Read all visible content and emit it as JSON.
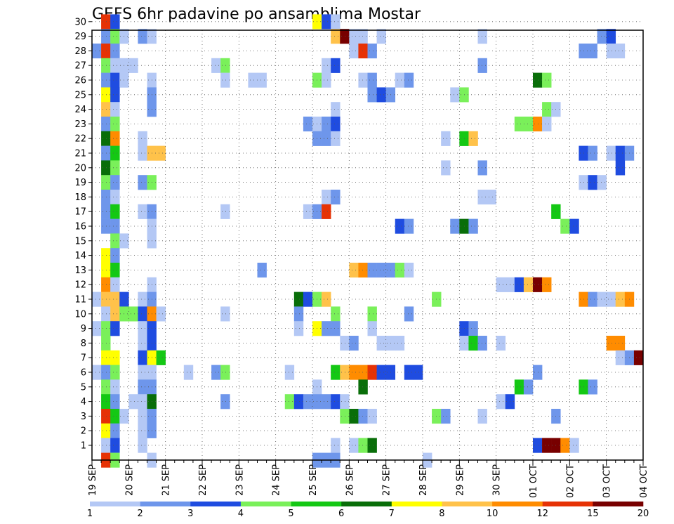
{
  "chart_data": {
    "type": "heatmap",
    "title": "GEFS 6hr padavine po ansamblima Mostar",
    "xlabel": "",
    "ylabel": "",
    "x_tick_labels": [
      "19 SEP",
      "20 SEP",
      "21 SEP",
      "22 SEP",
      "23 SEP",
      "24 SEP",
      "25 SEP",
      "26 SEP",
      "27 SEP",
      "28 SEP",
      "29 SEP",
      "30 SEP",
      "01 OCT",
      "02 OCT",
      "03 OCT",
      "04 OCT"
    ],
    "x_unit": "6-hour step from 19 SEP",
    "xlim": [
      0,
      60
    ],
    "y_tick_labels": [
      "1",
      "2",
      "3",
      "4",
      "5",
      "6",
      "7",
      "8",
      "9",
      "10",
      "11",
      "12",
      "13",
      "14",
      "15",
      "16",
      "17",
      "18",
      "19",
      "20",
      "21",
      "22",
      "23",
      "24",
      "25",
      "26",
      "27",
      "28",
      "29",
      "30"
    ],
    "ylim": [
      0.5,
      30.5
    ],
    "grid": true,
    "colorbar": {
      "labels": [
        "1",
        "2",
        "3",
        "4",
        "5",
        "6",
        "7",
        "8",
        "10",
        "12",
        "15",
        "20"
      ],
      "colors": [
        "#b4c8f5",
        "#6e96eb",
        "#1f4ce0",
        "#7af05a",
        "#14c814",
        "#096e09",
        "#ffff00",
        "#ffc24a",
        "#ff8c00",
        "#e63205",
        "#780000"
      ]
    },
    "cells_note": "each cell: [member, x_index (0 = 19 SEP 00z, 6h steps), color_index]",
    "cells": [
      [
        30,
        1,
        9
      ],
      [
        30,
        2,
        2
      ],
      [
        30,
        24,
        6
      ],
      [
        30,
        25,
        2
      ],
      [
        30,
        26,
        0
      ],
      [
        29,
        1,
        1
      ],
      [
        29,
        2,
        3
      ],
      [
        29,
        3,
        0
      ],
      [
        29,
        5,
        1
      ],
      [
        29,
        6,
        0
      ],
      [
        29,
        26,
        7
      ],
      [
        29,
        27,
        10
      ],
      [
        29,
        28,
        0
      ],
      [
        29,
        29,
        0
      ],
      [
        29,
        31,
        0
      ],
      [
        29,
        42,
        0
      ],
      [
        29,
        55,
        1
      ],
      [
        29,
        56,
        2
      ],
      [
        28,
        0,
        1
      ],
      [
        28,
        1,
        9
      ],
      [
        28,
        2,
        1
      ],
      [
        28,
        28,
        0
      ],
      [
        28,
        29,
        9
      ],
      [
        28,
        30,
        1
      ],
      [
        28,
        53,
        1
      ],
      [
        28,
        54,
        1
      ],
      [
        28,
        56,
        0
      ],
      [
        28,
        57,
        0
      ],
      [
        27,
        1,
        3
      ],
      [
        27,
        2,
        0
      ],
      [
        27,
        3,
        0
      ],
      [
        27,
        4,
        0
      ],
      [
        27,
        13,
        0
      ],
      [
        27,
        14,
        3
      ],
      [
        27,
        25,
        0
      ],
      [
        27,
        26,
        2
      ],
      [
        27,
        42,
        1
      ],
      [
        26,
        1,
        1
      ],
      [
        26,
        2,
        2
      ],
      [
        26,
        3,
        0
      ],
      [
        26,
        6,
        0
      ],
      [
        26,
        14,
        0
      ],
      [
        26,
        17,
        0
      ],
      [
        26,
        18,
        0
      ],
      [
        26,
        24,
        3
      ],
      [
        26,
        25,
        0
      ],
      [
        26,
        29,
        0
      ],
      [
        26,
        30,
        1
      ],
      [
        26,
        33,
        0
      ],
      [
        26,
        34,
        1
      ],
      [
        26,
        48,
        5
      ],
      [
        26,
        49,
        3
      ],
      [
        25,
        1,
        6
      ],
      [
        25,
        2,
        2
      ],
      [
        25,
        6,
        1
      ],
      [
        25,
        30,
        1
      ],
      [
        25,
        31,
        2
      ],
      [
        25,
        32,
        1
      ],
      [
        25,
        39,
        0
      ],
      [
        25,
        40,
        3
      ],
      [
        24,
        1,
        7
      ],
      [
        24,
        2,
        0
      ],
      [
        24,
        6,
        1
      ],
      [
        24,
        26,
        0
      ],
      [
        24,
        49,
        3
      ],
      [
        24,
        50,
        0
      ],
      [
        23,
        1,
        1
      ],
      [
        23,
        2,
        3
      ],
      [
        23,
        23,
        1
      ],
      [
        23,
        24,
        0
      ],
      [
        23,
        25,
        1
      ],
      [
        23,
        26,
        2
      ],
      [
        23,
        46,
        3
      ],
      [
        23,
        47,
        3
      ],
      [
        23,
        48,
        8
      ],
      [
        23,
        49,
        0
      ],
      [
        22,
        1,
        5
      ],
      [
        22,
        2,
        8
      ],
      [
        22,
        5,
        0
      ],
      [
        22,
        24,
        1
      ],
      [
        22,
        25,
        1
      ],
      [
        22,
        26,
        0
      ],
      [
        22,
        38,
        0
      ],
      [
        22,
        40,
        4
      ],
      [
        22,
        41,
        7
      ],
      [
        21,
        1,
        1
      ],
      [
        21,
        2,
        4
      ],
      [
        21,
        5,
        0
      ],
      [
        21,
        6,
        7
      ],
      [
        21,
        7,
        7
      ],
      [
        21,
        53,
        2
      ],
      [
        21,
        54,
        1
      ],
      [
        21,
        56,
        0
      ],
      [
        21,
        57,
        2
      ],
      [
        21,
        58,
        1
      ],
      [
        20,
        1,
        5
      ],
      [
        20,
        2,
        3
      ],
      [
        20,
        38,
        0
      ],
      [
        20,
        42,
        1
      ],
      [
        20,
        57,
        2
      ],
      [
        19,
        1,
        3
      ],
      [
        19,
        2,
        1
      ],
      [
        19,
        5,
        1
      ],
      [
        19,
        6,
        3
      ],
      [
        19,
        53,
        0
      ],
      [
        19,
        54,
        2
      ],
      [
        19,
        55,
        0
      ],
      [
        18,
        1,
        1
      ],
      [
        18,
        2,
        0
      ],
      [
        18,
        25,
        0
      ],
      [
        18,
        26,
        1
      ],
      [
        18,
        42,
        0
      ],
      [
        18,
        43,
        0
      ],
      [
        17,
        1,
        1
      ],
      [
        17,
        2,
        4
      ],
      [
        17,
        5,
        0
      ],
      [
        17,
        6,
        1
      ],
      [
        17,
        14,
        0
      ],
      [
        17,
        23,
        0
      ],
      [
        17,
        24,
        1
      ],
      [
        17,
        25,
        9
      ],
      [
        17,
        50,
        4
      ],
      [
        16,
        1,
        1
      ],
      [
        16,
        2,
        1
      ],
      [
        16,
        6,
        0
      ],
      [
        16,
        33,
        2
      ],
      [
        16,
        34,
        1
      ],
      [
        16,
        39,
        1
      ],
      [
        16,
        40,
        5
      ],
      [
        16,
        41,
        1
      ],
      [
        16,
        51,
        3
      ],
      [
        16,
        52,
        2
      ],
      [
        15,
        2,
        3
      ],
      [
        15,
        3,
        0
      ],
      [
        15,
        6,
        0
      ],
      [
        14,
        1,
        6
      ],
      [
        14,
        2,
        1
      ],
      [
        13,
        1,
        6
      ],
      [
        13,
        2,
        4
      ],
      [
        13,
        18,
        1
      ],
      [
        13,
        28,
        7
      ],
      [
        13,
        29,
        8
      ],
      [
        13,
        30,
        1
      ],
      [
        13,
        31,
        1
      ],
      [
        13,
        32,
        1
      ],
      [
        13,
        33,
        3
      ],
      [
        13,
        34,
        0
      ],
      [
        12,
        1,
        8
      ],
      [
        12,
        2,
        0
      ],
      [
        12,
        6,
        0
      ],
      [
        12,
        44,
        0
      ],
      [
        12,
        45,
        0
      ],
      [
        12,
        46,
        2
      ],
      [
        12,
        47,
        7
      ],
      [
        12,
        48,
        10
      ],
      [
        12,
        49,
        8
      ],
      [
        11,
        0,
        0
      ],
      [
        11,
        1,
        7
      ],
      [
        11,
        2,
        7
      ],
      [
        11,
        3,
        2
      ],
      [
        11,
        5,
        0
      ],
      [
        11,
        6,
        1
      ],
      [
        11,
        22,
        5
      ],
      [
        11,
        23,
        2
      ],
      [
        11,
        24,
        3
      ],
      [
        11,
        25,
        7
      ],
      [
        11,
        37,
        3
      ],
      [
        11,
        53,
        8
      ],
      [
        11,
        54,
        1
      ],
      [
        11,
        55,
        0
      ],
      [
        11,
        56,
        0
      ],
      [
        11,
        57,
        7
      ],
      [
        11,
        58,
        8
      ],
      [
        10,
        1,
        0
      ],
      [
        10,
        2,
        7
      ],
      [
        10,
        3,
        3
      ],
      [
        10,
        4,
        3
      ],
      [
        10,
        5,
        2
      ],
      [
        10,
        6,
        8
      ],
      [
        10,
        7,
        0
      ],
      [
        10,
        14,
        0
      ],
      [
        10,
        22,
        1
      ],
      [
        10,
        26,
        3
      ],
      [
        10,
        30,
        3
      ],
      [
        10,
        34,
        1
      ],
      [
        9,
        0,
        0
      ],
      [
        9,
        1,
        3
      ],
      [
        9,
        2,
        2
      ],
      [
        9,
        5,
        0
      ],
      [
        9,
        6,
        2
      ],
      [
        9,
        22,
        0
      ],
      [
        9,
        24,
        6
      ],
      [
        9,
        25,
        1
      ],
      [
        9,
        26,
        1
      ],
      [
        9,
        30,
        0
      ],
      [
        9,
        40,
        2
      ],
      [
        9,
        41,
        1
      ],
      [
        8,
        1,
        3
      ],
      [
        8,
        5,
        0
      ],
      [
        8,
        6,
        2
      ],
      [
        8,
        27,
        0
      ],
      [
        8,
        28,
        1
      ],
      [
        8,
        31,
        0
      ],
      [
        8,
        32,
        0
      ],
      [
        8,
        33,
        0
      ],
      [
        8,
        40,
        0
      ],
      [
        8,
        41,
        4
      ],
      [
        8,
        42,
        1
      ],
      [
        8,
        44,
        0
      ],
      [
        8,
        56,
        8
      ],
      [
        8,
        57,
        8
      ],
      [
        7,
        1,
        6
      ],
      [
        7,
        2,
        6
      ],
      [
        7,
        5,
        2
      ],
      [
        7,
        6,
        6
      ],
      [
        7,
        7,
        4
      ],
      [
        7,
        57,
        0
      ],
      [
        7,
        58,
        1
      ],
      [
        7,
        59,
        10
      ],
      [
        6,
        0,
        0
      ],
      [
        6,
        1,
        1
      ],
      [
        6,
        2,
        3
      ],
      [
        6,
        5,
        0
      ],
      [
        6,
        6,
        0
      ],
      [
        6,
        10,
        0
      ],
      [
        6,
        13,
        1
      ],
      [
        6,
        14,
        3
      ],
      [
        6,
        21,
        0
      ],
      [
        6,
        26,
        4
      ],
      [
        6,
        27,
        7
      ],
      [
        6,
        28,
        8
      ],
      [
        6,
        29,
        8
      ],
      [
        6,
        30,
        9
      ],
      [
        6,
        31,
        2
      ],
      [
        6,
        32,
        2
      ],
      [
        6,
        34,
        2
      ],
      [
        6,
        35,
        2
      ],
      [
        6,
        48,
        1
      ],
      [
        5,
        1,
        3
      ],
      [
        5,
        2,
        0
      ],
      [
        5,
        5,
        1
      ],
      [
        5,
        6,
        1
      ],
      [
        5,
        24,
        0
      ],
      [
        5,
        29,
        5
      ],
      [
        5,
        46,
        4
      ],
      [
        5,
        47,
        1
      ],
      [
        5,
        53,
        4
      ],
      [
        5,
        54,
        1
      ],
      [
        4,
        1,
        4
      ],
      [
        4,
        2,
        1
      ],
      [
        4,
        4,
        0
      ],
      [
        4,
        5,
        0
      ],
      [
        4,
        6,
        5
      ],
      [
        4,
        14,
        1
      ],
      [
        4,
        21,
        3
      ],
      [
        4,
        22,
        2
      ],
      [
        4,
        23,
        1
      ],
      [
        4,
        24,
        1
      ],
      [
        4,
        25,
        1
      ],
      [
        4,
        26,
        2
      ],
      [
        4,
        27,
        0
      ],
      [
        4,
        44,
        0
      ],
      [
        4,
        45,
        2
      ],
      [
        3,
        1,
        9
      ],
      [
        3,
        2,
        4
      ],
      [
        3,
        3,
        0
      ],
      [
        3,
        5,
        0
      ],
      [
        3,
        6,
        1
      ],
      [
        3,
        27,
        3
      ],
      [
        3,
        28,
        5
      ],
      [
        3,
        29,
        1
      ],
      [
        3,
        30,
        0
      ],
      [
        3,
        37,
        3
      ],
      [
        3,
        38,
        1
      ],
      [
        3,
        42,
        0
      ],
      [
        3,
        50,
        1
      ],
      [
        2,
        1,
        6
      ],
      [
        2,
        2,
        1
      ],
      [
        2,
        5,
        0
      ],
      [
        2,
        6,
        1
      ],
      [
        1,
        1,
        0
      ],
      [
        1,
        2,
        2
      ],
      [
        1,
        5,
        0
      ],
      [
        1,
        26,
        0
      ],
      [
        1,
        28,
        0
      ],
      [
        1,
        29,
        3
      ],
      [
        1,
        30,
        5
      ],
      [
        1,
        48,
        2
      ],
      [
        1,
        49,
        10
      ],
      [
        1,
        50,
        10
      ],
      [
        1,
        51,
        8
      ],
      [
        1,
        52,
        0
      ],
      [
        0,
        1,
        9
      ],
      [
        0,
        2,
        3
      ],
      [
        0,
        6,
        0
      ],
      [
        0,
        24,
        1
      ],
      [
        0,
        25,
        1
      ],
      [
        0,
        26,
        1
      ],
      [
        0,
        36,
        0
      ]
    ]
  }
}
